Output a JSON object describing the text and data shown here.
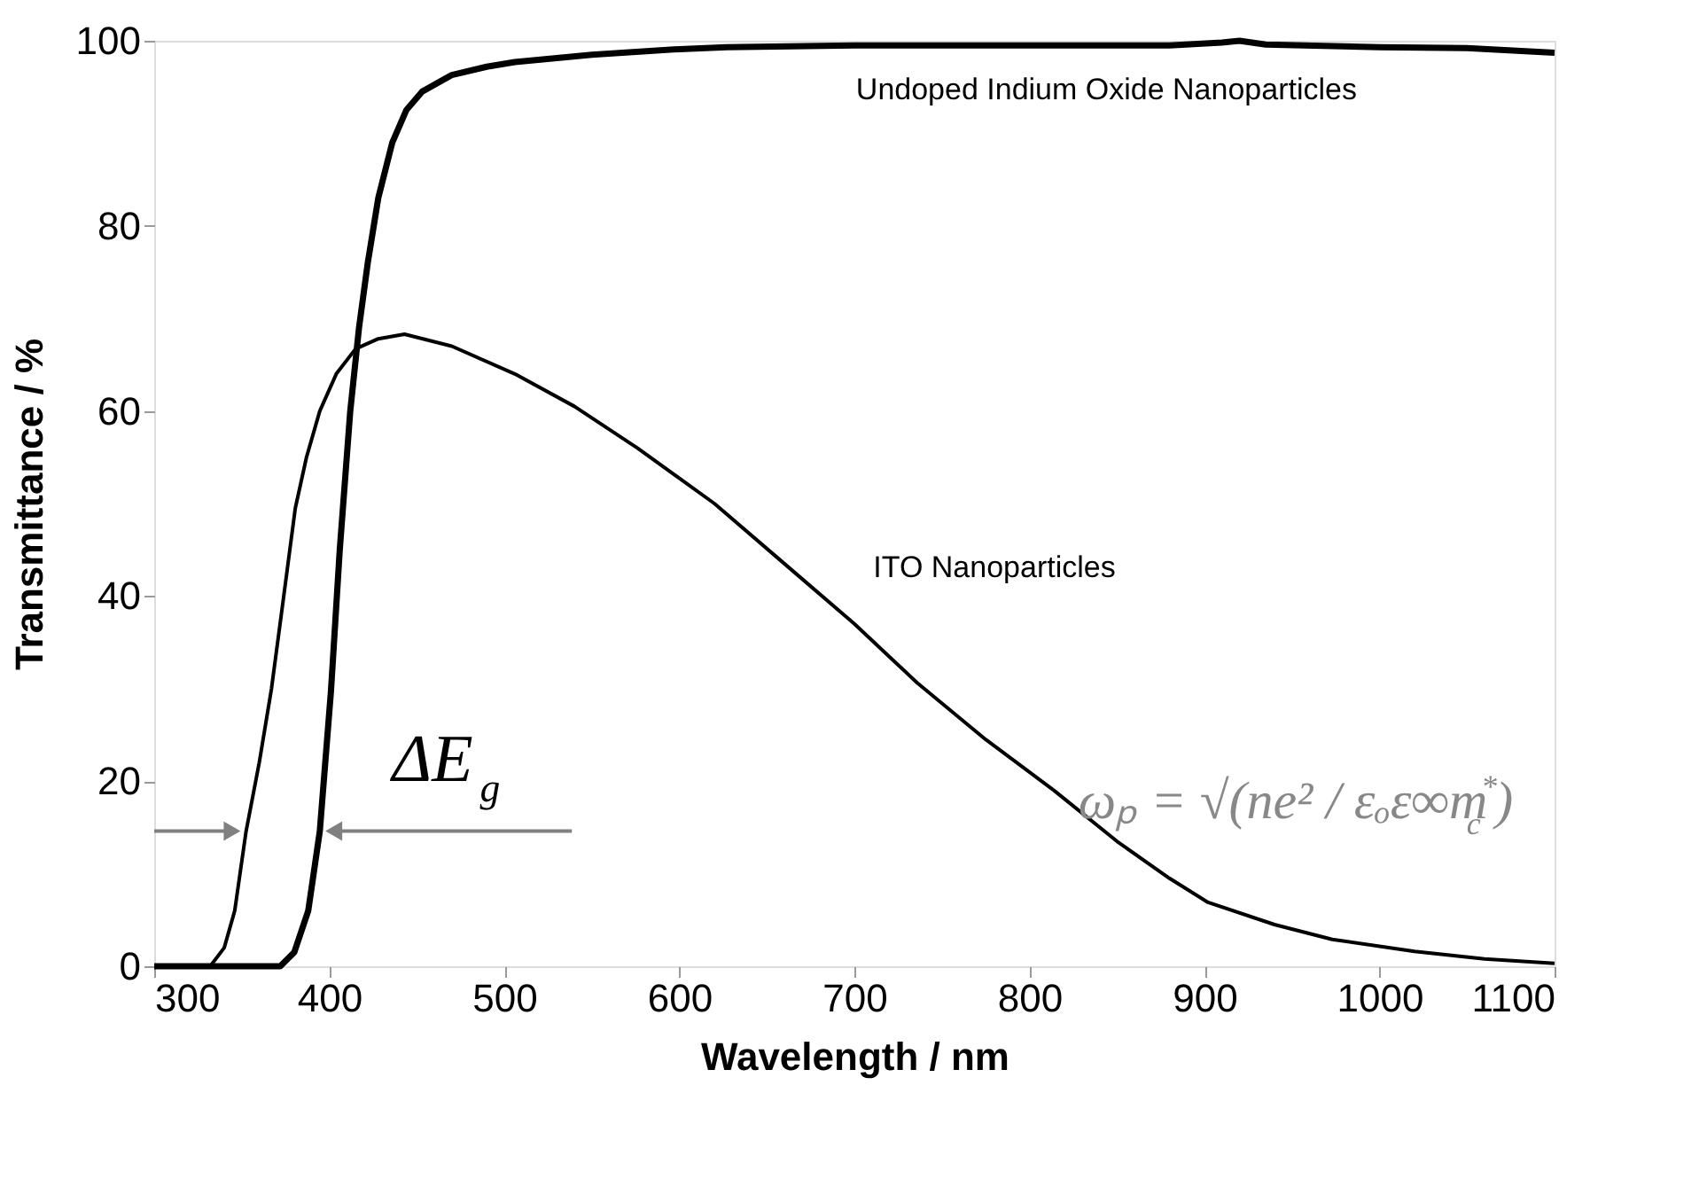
{
  "chart_data": {
    "type": "line",
    "xlabel": "Wavelength / nm",
    "ylabel": "Transmittance / %",
    "xlim": [
      300,
      1100
    ],
    "xticks": [
      300,
      400,
      500,
      600,
      700,
      800,
      900,
      {
        "value": 1000,
        "label": "1000"
      },
      {
        "value": 1100,
        "label": "1100"
      }
    ],
    "ylim": [
      0,
      100
    ],
    "yticks": [
      0,
      20,
      40,
      60,
      80,
      100
    ],
    "grid": false,
    "legend": false,
    "marker": "none",
    "line_style": "solid",
    "series": [
      {
        "name": "Undoped Indium Oxide Nanoparticles",
        "color": "#000000",
        "x": [
          300,
          340,
          372,
          380,
          388,
          394.6,
          401,
          406,
          412,
          417,
          422,
          428,
          436,
          444,
          453,
          470,
          490,
          506,
          550,
          600,
          627,
          700,
          800,
          880,
          910,
          920,
          935,
          1000,
          1050,
          1100
        ],
        "values": [
          0,
          0,
          0,
          1.5,
          6,
          14.6,
          29.8,
          45,
          60,
          69,
          76,
          83,
          89,
          92.5,
          94.5,
          96.3,
          97.2,
          97.7,
          98.5,
          99.1,
          99.3,
          99.5,
          99.5,
          99.5,
          99.8,
          100,
          99.6,
          99.3,
          99.2,
          98.7
        ]
      },
      {
        "name": "ITO Nanoparticles",
        "color": "#000000",
        "x": [
          300,
          320,
          332,
          340,
          346,
          352.5,
          360,
          367,
          374,
          380.6,
          387,
          394.6,
          404,
          415,
          428,
          443,
          470,
          506,
          540,
          576,
          620,
          660,
          700,
          736,
          775,
          814,
          850,
          880,
          902,
          940,
          973,
          1020,
          1060,
          1100
        ],
        "values": [
          0,
          0,
          0,
          2,
          6,
          14.6,
          22,
          30,
          40,
          49.5,
          55,
          60,
          64,
          66.7,
          67.8,
          68.3,
          67,
          64,
          60.5,
          56,
          50,
          43.5,
          37,
          30.6,
          24.5,
          19,
          13.5,
          9.5,
          6.9,
          4.5,
          2.9,
          1.6,
          0.8,
          0.3
        ]
      }
    ],
    "annotations": [
      "ΔE$_{g}$",
      "ωₚ = √(ne² / εₒε∞m$_{c}$$^{*}$)"
    ]
  }
}
